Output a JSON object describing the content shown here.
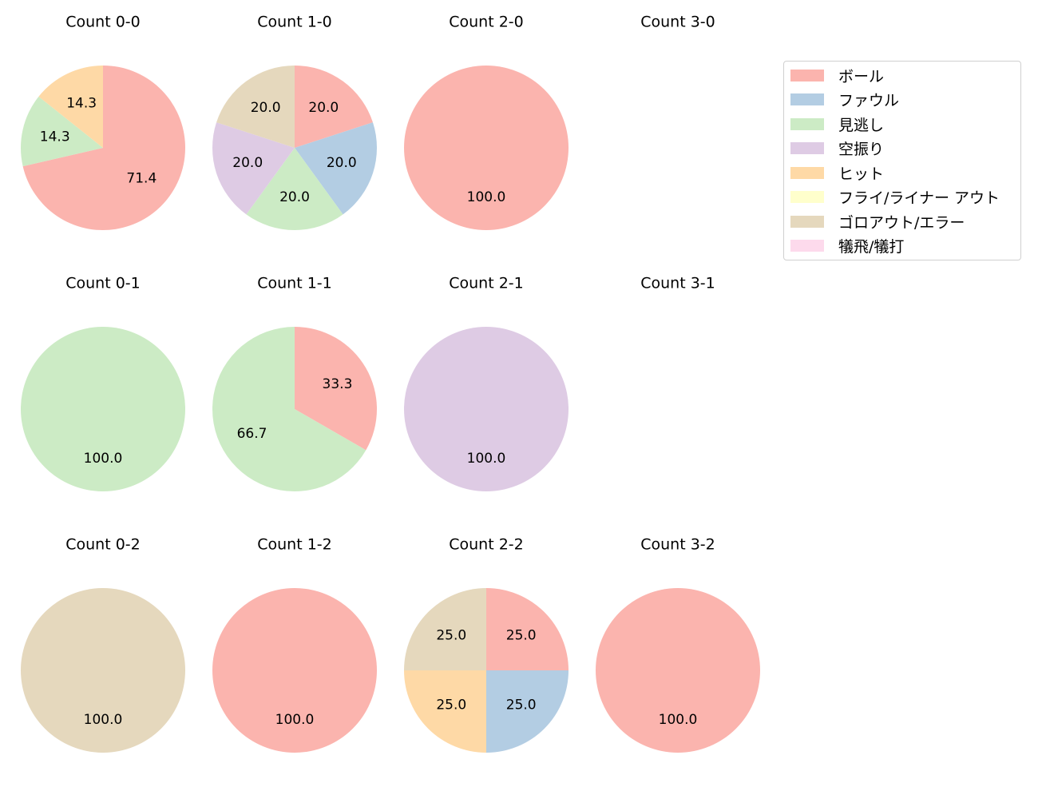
{
  "chart_data": {
    "type": "pie",
    "title": "",
    "legend": {
      "position": "upper right",
      "entries": [
        {
          "label": "ボール",
          "color": "#fbb4ae"
        },
        {
          "label": "ファウル",
          "color": "#b3cde3"
        },
        {
          "label": "見逃し",
          "color": "#ccebc5"
        },
        {
          "label": "空振り",
          "color": "#decbe4"
        },
        {
          "label": "ヒット",
          "color": "#fed9a6"
        },
        {
          "label": "フライ/ライナー アウト",
          "color": "#ffffcc"
        },
        {
          "label": "ゴロアウト/エラー",
          "color": "#e5d8bd"
        },
        {
          "label": "犠飛/犠打",
          "color": "#fddaec"
        }
      ]
    },
    "subplots": [
      {
        "title": "Count 0-0",
        "row": 0,
        "col": 0,
        "slices": [
          {
            "label": "ボール",
            "value": 71.4
          },
          {
            "label": "見逃し",
            "value": 14.3
          },
          {
            "label": "ヒット",
            "value": 14.3
          }
        ]
      },
      {
        "title": "Count 1-0",
        "row": 0,
        "col": 1,
        "slices": [
          {
            "label": "ボール",
            "value": 20.0
          },
          {
            "label": "ファウル",
            "value": 20.0
          },
          {
            "label": "見逃し",
            "value": 20.0
          },
          {
            "label": "空振り",
            "value": 20.0
          },
          {
            "label": "ゴロアウト/エラー",
            "value": 20.0
          }
        ]
      },
      {
        "title": "Count 2-0",
        "row": 0,
        "col": 2,
        "slices": [
          {
            "label": "ボール",
            "value": 100.0
          }
        ]
      },
      {
        "title": "Count 3-0",
        "row": 0,
        "col": 3,
        "slices": []
      },
      {
        "title": "Count 0-1",
        "row": 1,
        "col": 0,
        "slices": [
          {
            "label": "見逃し",
            "value": 100.0
          }
        ]
      },
      {
        "title": "Count 1-1",
        "row": 1,
        "col": 1,
        "slices": [
          {
            "label": "ボール",
            "value": 33.3
          },
          {
            "label": "見逃し",
            "value": 66.7
          }
        ]
      },
      {
        "title": "Count 2-1",
        "row": 1,
        "col": 2,
        "slices": [
          {
            "label": "空振り",
            "value": 100.0
          }
        ]
      },
      {
        "title": "Count 3-1",
        "row": 1,
        "col": 3,
        "slices": []
      },
      {
        "title": "Count 0-2",
        "row": 2,
        "col": 0,
        "slices": [
          {
            "label": "ゴロアウト/エラー",
            "value": 100.0
          }
        ]
      },
      {
        "title": "Count 1-2",
        "row": 2,
        "col": 1,
        "slices": [
          {
            "label": "ボール",
            "value": 100.0
          }
        ]
      },
      {
        "title": "Count 2-2",
        "row": 2,
        "col": 2,
        "slices": [
          {
            "label": "ボール",
            "value": 25.0
          },
          {
            "label": "ファウル",
            "value": 25.0
          },
          {
            "label": "ヒット",
            "value": 25.0
          },
          {
            "label": "ゴロアウト/エラー",
            "value": 25.0
          }
        ]
      },
      {
        "title": "Count 3-2",
        "row": 2,
        "col": 3,
        "slices": [
          {
            "label": "ボール",
            "value": 100.0
          }
        ]
      }
    ]
  }
}
